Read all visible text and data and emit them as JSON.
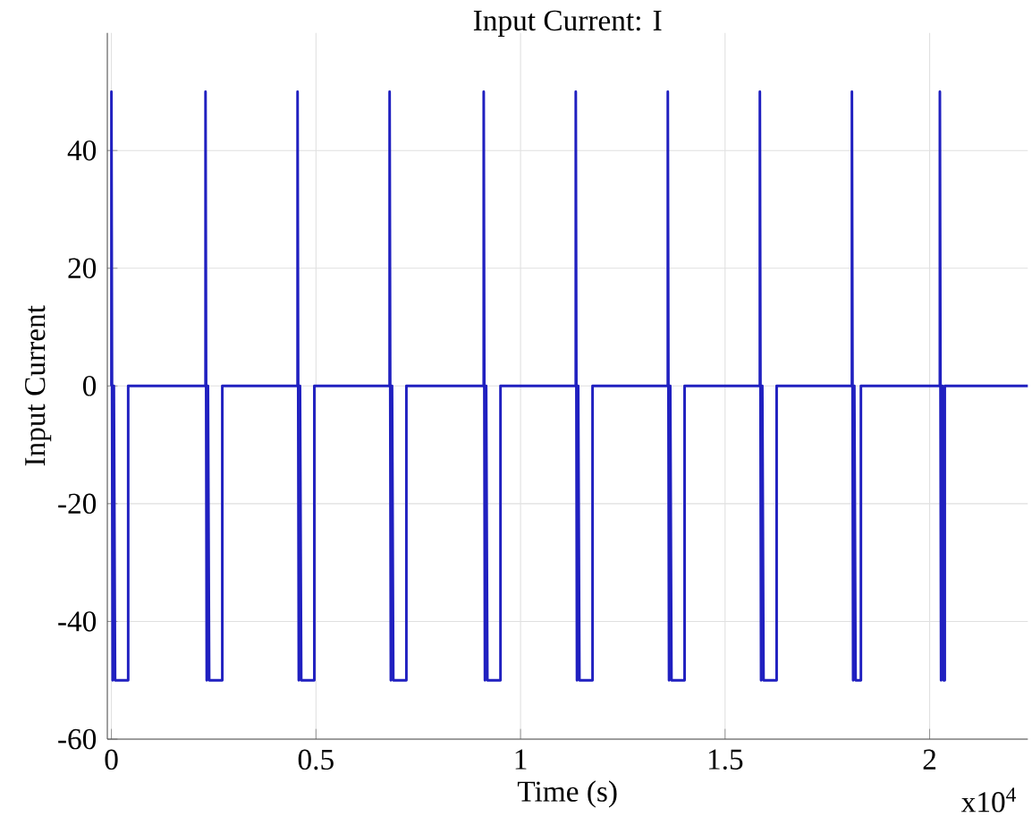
{
  "chart_data": {
    "type": "line",
    "title": "Input Current: I",
    "xlabel": "Time (s)",
    "ylabel": "Input Current",
    "annotations": [
      "x10$^{4}$"
    ],
    "xlim": [
      -0.01,
      2.24
    ],
    "ylim": [
      -60,
      60
    ],
    "xticks": [
      0,
      0.5,
      1,
      1.5,
      2
    ],
    "yticks": [
      -60,
      -40,
      -20,
      0,
      20,
      40
    ],
    "grid": true,
    "marker": "none",
    "line_style": "solid",
    "series": [
      {
        "color": "#2020c0",
        "x": [
          0,
          0,
          0.003,
          0.006,
          0.009,
          0.041,
          0.041,
          0.23,
          0.23,
          0.233,
          0.236,
          0.239,
          0.271,
          0.271,
          0.455,
          0.455,
          0.458,
          0.461,
          0.464,
          0.496,
          0.496,
          0.68,
          0.68,
          0.683,
          0.686,
          0.689,
          0.721,
          0.721,
          0.91,
          0.91,
          0.913,
          0.916,
          0.919,
          0.951,
          0.951,
          1.135,
          1.135,
          1.138,
          1.141,
          1.144,
          1.176,
          1.176,
          1.36,
          1.36,
          1.363,
          1.366,
          1.369,
          1.401,
          1.401,
          1.585,
          1.585,
          1.588,
          1.591,
          1.594,
          1.626,
          1.626,
          1.81,
          1.81,
          1.813,
          1.816,
          1.819,
          1.832,
          1.832,
          2.025,
          2.025,
          2.028,
          2.031,
          2.034,
          2.037,
          2.037,
          2.24
        ],
        "values": [
          0,
          50,
          -50,
          0,
          -50,
          -50,
          0,
          0,
          50,
          -50,
          0,
          -50,
          -50,
          0,
          0,
          50,
          -50,
          0,
          -50,
          -50,
          0,
          0,
          50,
          -50,
          0,
          -50,
          -50,
          0,
          0,
          50,
          -50,
          0,
          -50,
          -50,
          0,
          0,
          50,
          -50,
          0,
          -50,
          -50,
          0,
          0,
          50,
          -50,
          0,
          -50,
          -50,
          0,
          0,
          50,
          -50,
          0,
          -50,
          -50,
          0,
          0,
          50,
          -50,
          0,
          -50,
          -50,
          0,
          0,
          50,
          -50,
          0,
          -50,
          -50,
          0,
          0
        ]
      }
    ]
  }
}
